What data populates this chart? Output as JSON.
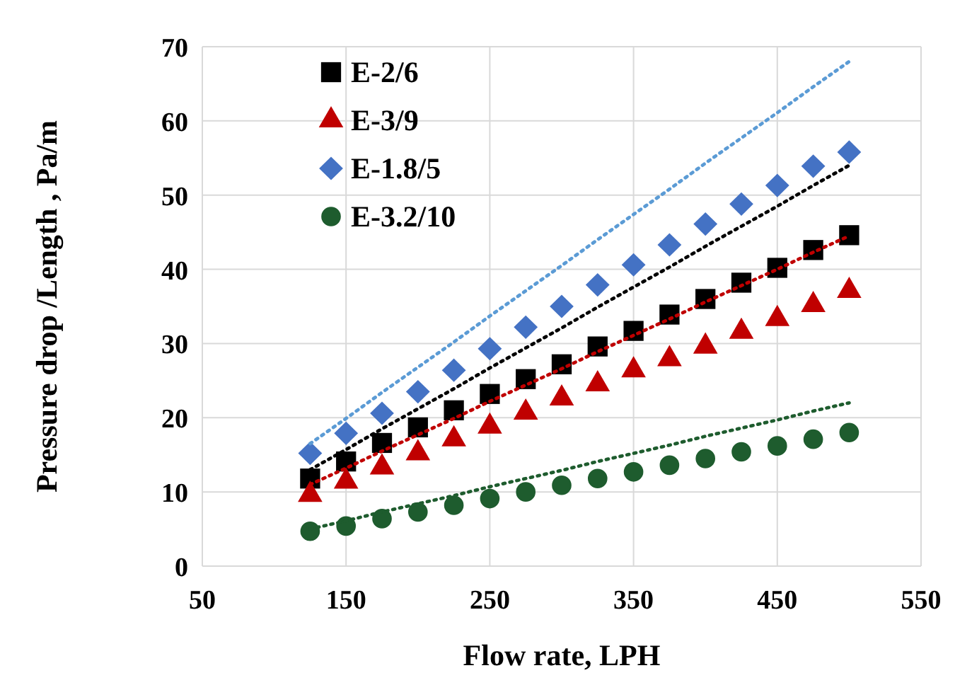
{
  "chart_data": {
    "type": "scatter",
    "xlabel": "Flow rate, LPH",
    "ylabel": "Pressure drop /Length , Pa/m",
    "x": [
      125,
      150,
      175,
      200,
      225,
      250,
      275,
      300,
      325,
      350,
      375,
      400,
      425,
      450,
      475,
      500
    ],
    "xlim": [
      50,
      550
    ],
    "xticks": [
      50,
      150,
      250,
      350,
      450,
      550
    ],
    "ylim": [
      0,
      70
    ],
    "yticks": [
      0,
      10,
      20,
      30,
      40,
      50,
      60,
      70
    ],
    "grid": true,
    "legend": "top left",
    "series": [
      {
        "name": "E-2/6",
        "color": "#000000",
        "marker": "square",
        "values": [
          11.8,
          14.1,
          16.6,
          18.7,
          21,
          23.2,
          25.2,
          27.2,
          29.6,
          31.7,
          33.9,
          36,
          38.2,
          40.2,
          42.6,
          44.6
        ]
      },
      {
        "name": "E-3/9",
        "color": "#c00000",
        "marker": "triangle",
        "values": [
          9.6,
          11.4,
          13.3,
          15.2,
          17.1,
          18.8,
          20.7,
          22.6,
          24.5,
          26.4,
          27.9,
          29.6,
          31.6,
          33.3,
          35.2,
          37.1
        ]
      },
      {
        "name": "E-1.8/5",
        "color": "#4472c4",
        "marker": "diamond",
        "values": [
          15.2,
          17.9,
          20.6,
          23.5,
          26.4,
          29.3,
          32.2,
          35,
          37.9,
          40.6,
          43.3,
          46.1,
          48.8,
          51.3,
          53.9,
          55.8
        ]
      },
      {
        "name": "E-3.2/10",
        "color": "#1e5c2e",
        "marker": "circle",
        "values": [
          4.7,
          5.4,
          6.4,
          7.3,
          8.2,
          9.1,
          10,
          10.9,
          11.8,
          12.7,
          13.6,
          14.5,
          15.4,
          16.2,
          17.1,
          18
        ]
      },
      {
        "type": "line",
        "color": "#5b9bd5",
        "line_style": "dotted",
        "marker": "none",
        "values": [
          16.5,
          19.9,
          23.4,
          26.8,
          30.2,
          33.7,
          37.1,
          40.5,
          44,
          47.4,
          50.8,
          54.3,
          57.7,
          61.1,
          64.6,
          68
        ]
      },
      {
        "type": "line",
        "color": "#000000",
        "line_style": "dotted",
        "marker": "none",
        "values": [
          13,
          15.7,
          18.5,
          21.2,
          23.9,
          26.7,
          29.4,
          32.1,
          34.9,
          37.6,
          40.3,
          43.1,
          45.8,
          48.5,
          51.3,
          54
        ]
      },
      {
        "type": "line",
        "color": "#c00000",
        "line_style": "dotted",
        "marker": "none",
        "values": [
          11,
          13.2,
          15.5,
          17.7,
          19.9,
          22.2,
          24.4,
          26.6,
          28.9,
          31.1,
          33.3,
          35.6,
          37.8,
          40,
          42.3,
          44.5
        ]
      },
      {
        "type": "line",
        "color": "#1e5c2e",
        "line_style": "dotted",
        "marker": "none",
        "values": [
          5,
          6.1,
          7.3,
          8.4,
          9.5,
          10.7,
          11.8,
          12.9,
          14.1,
          15.2,
          16.3,
          17.5,
          18.6,
          19.7,
          20.9,
          22
        ]
      }
    ]
  }
}
